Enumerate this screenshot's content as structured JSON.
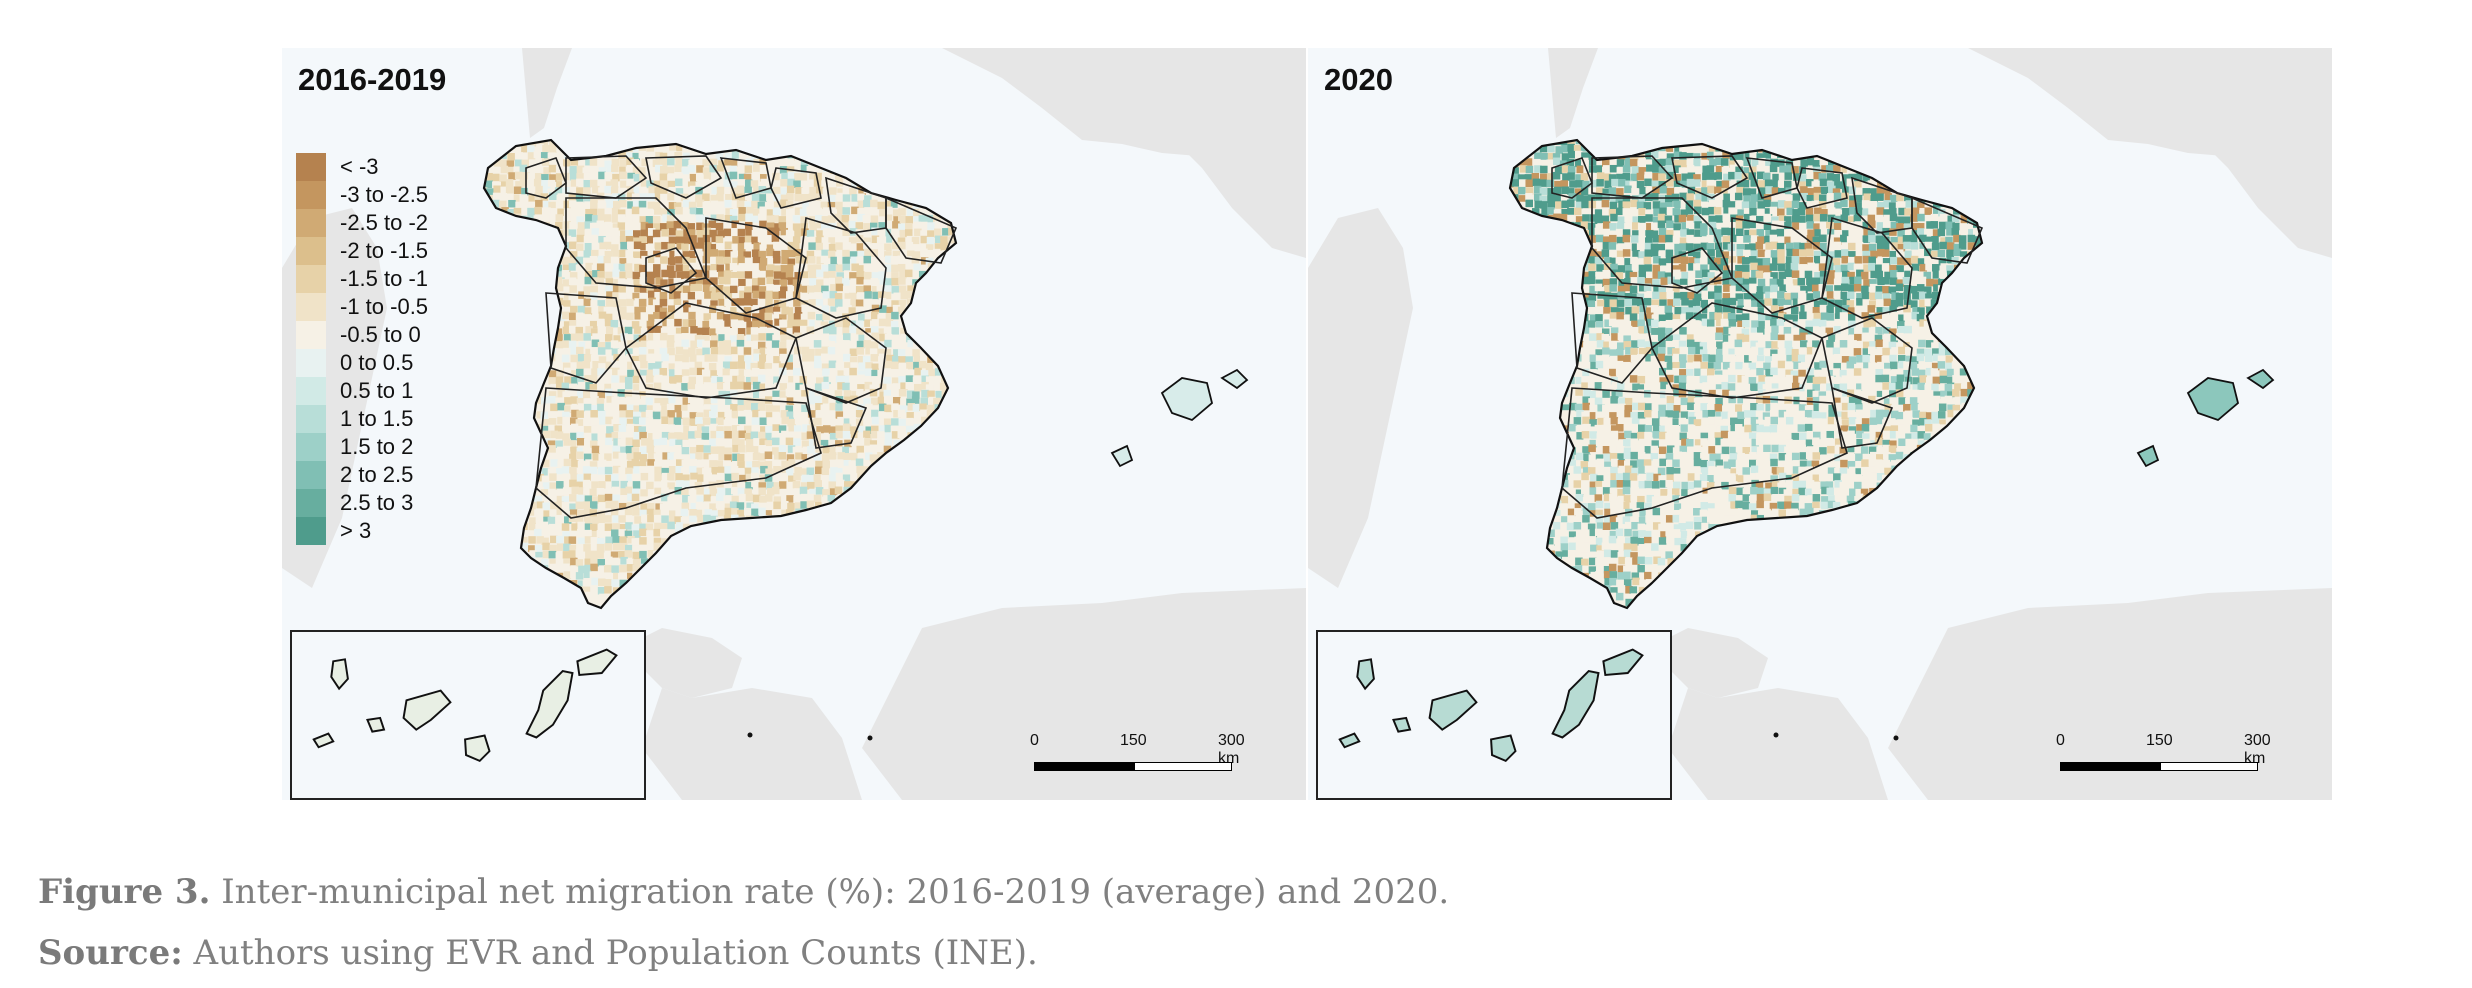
{
  "panels": [
    {
      "title": "2016-2019",
      "variant": "pre"
    },
    {
      "title": "2020",
      "variant": "post"
    }
  ],
  "legend": [
    {
      "label": "< -3",
      "color": "#b5824f"
    },
    {
      "label": "-3 to -2.5",
      "color": "#c4965f"
    },
    {
      "label": "-2.5 to -2",
      "color": "#d0aa74"
    },
    {
      "label": "-2 to -1.5",
      "color": "#dcbf8c"
    },
    {
      "label": "-1.5 to -1",
      "color": "#e7d2a8"
    },
    {
      "label": "-1 to -0.5",
      "color": "#f0e3c8"
    },
    {
      "label": "-0.5 to 0",
      "color": "#f6f1e6"
    },
    {
      "label": "0 to 0.5",
      "color": "#e8f2f1"
    },
    {
      "label": "0.5 to 1",
      "color": "#d1eae6"
    },
    {
      "label": "1 to 1.5",
      "color": "#b8ded8"
    },
    {
      "label": "1.5 to 2",
      "color": "#9dd0c8"
    },
    {
      "label": "2 to 2.5",
      "color": "#80bfb4"
    },
    {
      "label": "2.5 to 3",
      "color": "#67ae9f"
    },
    {
      "label": "> 3",
      "color": "#4f9c8c"
    }
  ],
  "scale": {
    "label_0": "0",
    "label_150": "150",
    "label_300": "300 km"
  },
  "caption": {
    "figure_label": "Figure 3.",
    "figure_text": " Inter-municipal net migration rate (%): 2016-2019 (average) and 2020.",
    "source_label": "Source:",
    "source_text": " Authors using EVR and Population Counts (INE)."
  }
}
